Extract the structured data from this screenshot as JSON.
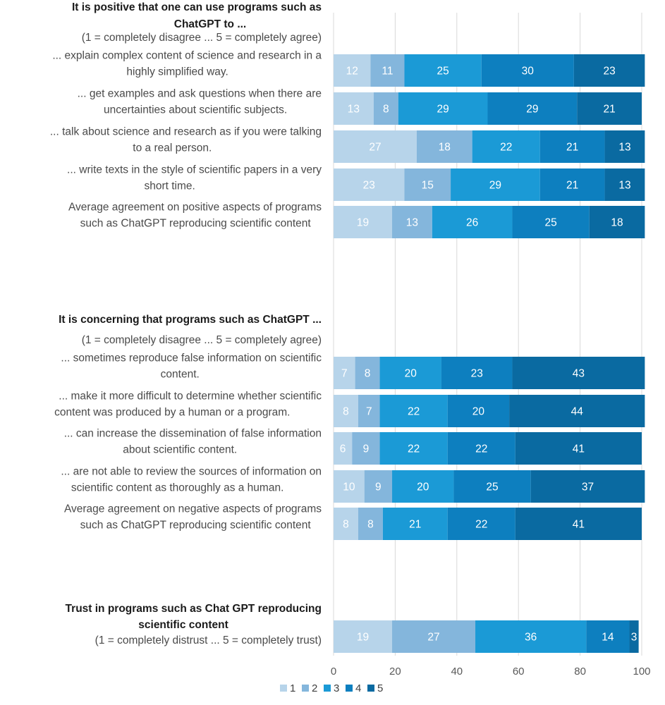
{
  "chart_data": {
    "type": "bar",
    "orientation": "horizontal",
    "stacked": true,
    "xlim": [
      0,
      100
    ],
    "x_ticks": [
      "0",
      "20",
      "40",
      "60",
      "80",
      "100"
    ],
    "grid": true,
    "legend_position": "bottom",
    "series_names": [
      "1",
      "2",
      "3",
      "4",
      "5"
    ],
    "colors": [
      "#b7d4ea",
      "#84b6dc",
      "#1b9ad6",
      "#0d7fbf",
      "#0a6aa1"
    ],
    "label_colors": [
      "#ffffff",
      "#ffffff",
      "#ffffff",
      "#ffffff",
      "#ffffff"
    ],
    "groups": [
      {
        "title": [
          "It is positive that one can use programs such as",
          "ChatGPT to ..."
        ],
        "subtitle": "(1 = completely disagree ... 5 = completely agree)",
        "rows": [
          {
            "label": [
              "... explain complex content of science and research in a",
              "highly simplified way."
            ],
            "values": [
              12,
              11,
              25,
              30,
              23
            ]
          },
          {
            "label": [
              "... get examples and ask questions when there are",
              "uncertainties about scientific subjects."
            ],
            "values": [
              13,
              8,
              29,
              29,
              21
            ]
          },
          {
            "label": [
              "... talk about science and research as if you were talking",
              "to a real person."
            ],
            "values": [
              27,
              18,
              22,
              21,
              13
            ]
          },
          {
            "label": [
              "... write texts in the style of scientific papers in a very",
              "short time."
            ],
            "values": [
              23,
              15,
              29,
              21,
              13
            ]
          },
          {
            "label": [
              "Average agreement on positive aspects of programs",
              "such as ChatGPT reproducing scientific content"
            ],
            "values": [
              19,
              13,
              26,
              25,
              18
            ]
          }
        ]
      },
      {
        "title": [
          "It is concerning that programs such as ChatGPT ..."
        ],
        "subtitle": "(1 = completely disagree ... 5 = completely agree)",
        "rows": [
          {
            "label": [
              "... sometimes reproduce false information on scientific",
              "content."
            ],
            "values": [
              7,
              8,
              20,
              23,
              43
            ]
          },
          {
            "label": [
              "... make it more difficult to determine whether scientific",
              "content was produced by a human or a program."
            ],
            "values": [
              8,
              7,
              22,
              20,
              44
            ]
          },
          {
            "label": [
              "... can increase the dissemination of false information",
              "about scientific content."
            ],
            "values": [
              6,
              9,
              22,
              22,
              41
            ]
          },
          {
            "label": [
              "... are not able to review the sources of information on",
              "scientific content as thoroughly as a human."
            ],
            "values": [
              10,
              9,
              20,
              25,
              37
            ]
          },
          {
            "label": [
              "Average agreement on negative aspects of programs",
              "such as ChatGPT reproducing scientific content"
            ],
            "values": [
              8,
              8,
              21,
              22,
              41
            ]
          }
        ]
      },
      {
        "title": [
          "Trust in programs such as Chat GPT reproducing",
          "scientific content"
        ],
        "subtitle": "(1 = completely distrust ... 5 = completely trust)",
        "rows": [
          {
            "label": [],
            "values": [
              19,
              27,
              36,
              14,
              3
            ]
          }
        ]
      }
    ]
  }
}
